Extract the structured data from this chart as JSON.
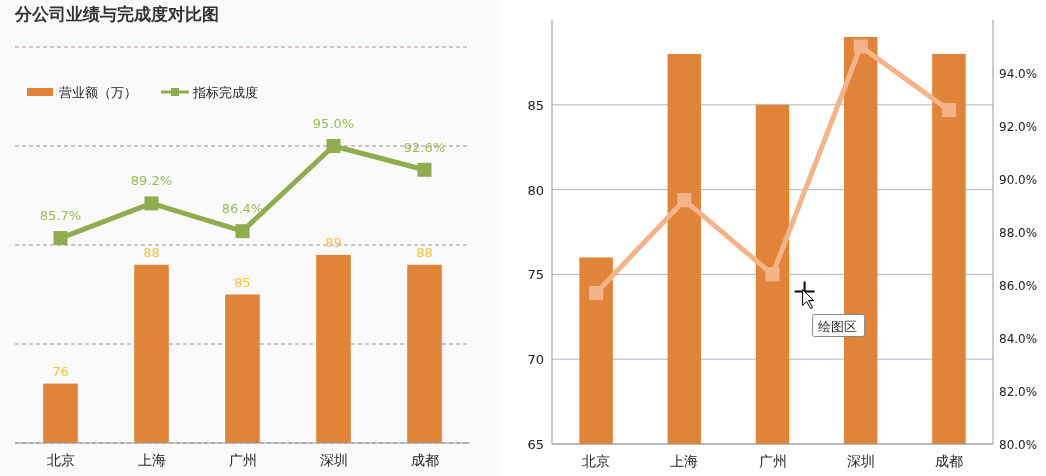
{
  "chart_data": [
    {
      "type": "bar",
      "title": "分公司业绩与完成度对比图",
      "categories": [
        "北京",
        "上海",
        "广州",
        "深圳",
        "成都"
      ],
      "ylim": [
        70,
        110
      ],
      "yticks": [
        {
          "value": 70,
          "label": null
        },
        {
          "value": 80,
          "label": null
        },
        {
          "value": 90,
          "label": null
        },
        {
          "value": 100,
          "label": null
        },
        {
          "value": 110,
          "label": null
        }
      ],
      "y2lim": [
        65,
        105
      ],
      "grid": "y",
      "tick_labels": "x",
      "legend": "top left",
      "series": [
        {
          "name": "营业额（万）",
          "color": "#e0843a",
          "values": [
            76,
            88,
            85,
            89,
            88
          ],
          "value_labels": [
            "76",
            "88",
            "85",
            "89",
            "88"
          ]
        },
        {
          "type": "line",
          "axis": "y2",
          "name": "指标完成度",
          "color": "#8fac4e",
          "marker": "square",
          "values": [
            85.7,
            89.2,
            86.4,
            95.0,
            92.6
          ],
          "value_labels": [
            "85.7%",
            "89.2%",
            "86.4%",
            "95.0%",
            "92.6%"
          ]
        }
      ]
    },
    {
      "type": "bar",
      "categories": [
        "北京",
        "上海",
        "广州",
        "深圳",
        "成都"
      ],
      "ylim": [
        65,
        90
      ],
      "yticks": [
        65,
        70,
        75,
        80,
        85
      ],
      "y2lim": [
        80,
        96
      ],
      "y2ticks": [
        {
          "value": 80,
          "label": "80.0%"
        },
        {
          "value": 82,
          "label": "82.0%"
        },
        {
          "value": 84,
          "label": "84.0%"
        },
        {
          "value": 86,
          "label": "86.0%"
        },
        {
          "value": 88,
          "label": "88.0%"
        },
        {
          "value": 90,
          "label": "90.0%"
        },
        {
          "value": 92,
          "label": "92.0%"
        },
        {
          "value": 94,
          "label": "94.0%"
        }
      ],
      "grid": "y",
      "legend": false,
      "annotations": [
        "绘图区"
      ],
      "series": [
        {
          "color": "#e0843a",
          "values": [
            76,
            88,
            85,
            89,
            88
          ]
        },
        {
          "type": "line",
          "axis": "y2",
          "color": "#f5b38a",
          "marker": "square",
          "values": [
            85.7,
            89.2,
            86.4,
            95.0,
            92.6
          ]
        }
      ]
    }
  ]
}
